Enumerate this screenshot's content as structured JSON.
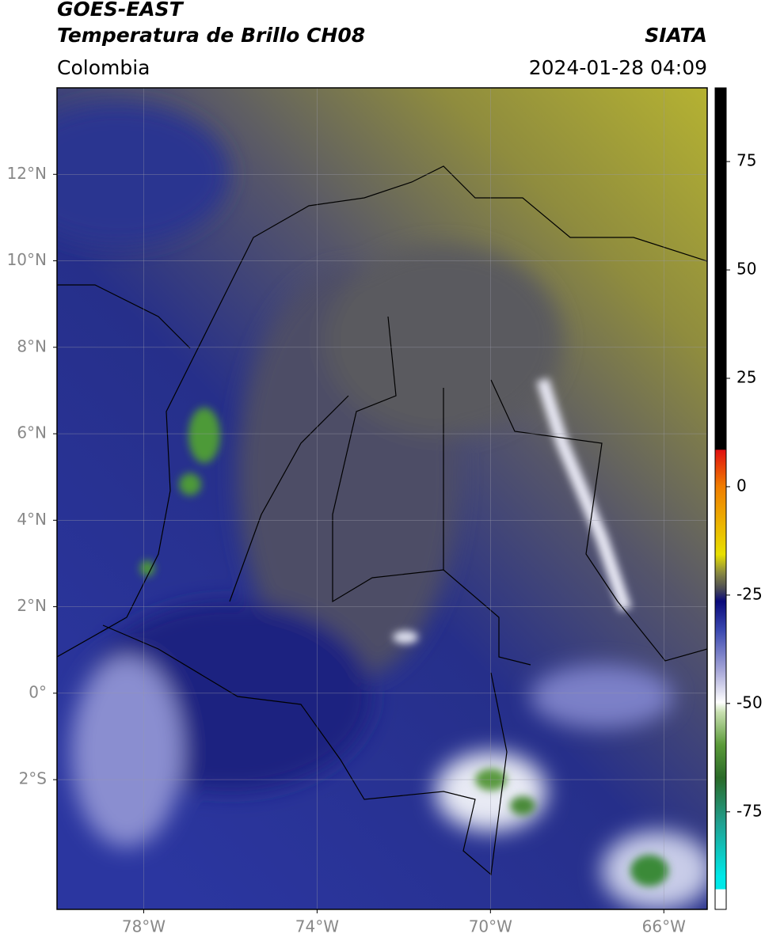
{
  "header": {
    "satellite": "GOES-EAST",
    "product": "Temperatura de Brillo CH08",
    "source": "SIATA",
    "region": "Colombia",
    "datetime": "2024-01-28 04:09"
  },
  "map": {
    "xlim": [
      -80,
      -65
    ],
    "ylim": [
      -5,
      14
    ],
    "xticks": [
      {
        "value": -78,
        "label": "78°W"
      },
      {
        "value": -74,
        "label": "74°W"
      },
      {
        "value": -70,
        "label": "70°W"
      },
      {
        "value": -66,
        "label": "66°W"
      }
    ],
    "yticks": [
      {
        "value": 12,
        "label": "12°N"
      },
      {
        "value": 10,
        "label": "10°N"
      },
      {
        "value": 8,
        "label": "8°N"
      },
      {
        "value": 6,
        "label": "6°N"
      },
      {
        "value": 4,
        "label": "4°N"
      },
      {
        "value": 2,
        "label": "2°N"
      },
      {
        "value": 0,
        "label": "0°"
      },
      {
        "value": -2,
        "label": "2°S"
      }
    ],
    "grid": true
  },
  "colorbar": {
    "lim": [
      -97.5,
      92
    ],
    "ticks": [
      75,
      50,
      25,
      0,
      -25,
      -50,
      -75
    ]
  }
}
